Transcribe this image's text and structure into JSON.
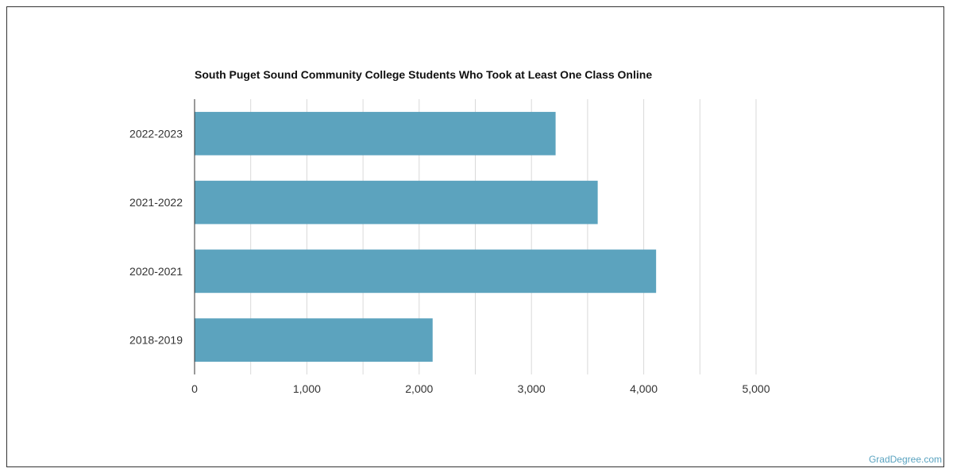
{
  "chart_data": {
    "type": "bar",
    "orientation": "horizontal",
    "title": "South Puget Sound Community College Students Who Took at Least One Class Online",
    "categories": [
      "2022-2023",
      "2021-2022",
      "2020-2021",
      "2018-2019"
    ],
    "values": [
      3215,
      3590,
      4110,
      2120
    ],
    "xlim": [
      0,
      5000
    ],
    "xticks": [
      0,
      1000,
      2000,
      3000,
      4000,
      5000
    ],
    "xtick_labels": [
      "0",
      "1,000",
      "2,000",
      "3,000",
      "4,000",
      "5,000"
    ],
    "xlabel": "",
    "ylabel": "",
    "grid": true,
    "bar_color": "#5ca3be",
    "grid_color": "#d9d9d9"
  },
  "watermark": "GradDegree.com"
}
